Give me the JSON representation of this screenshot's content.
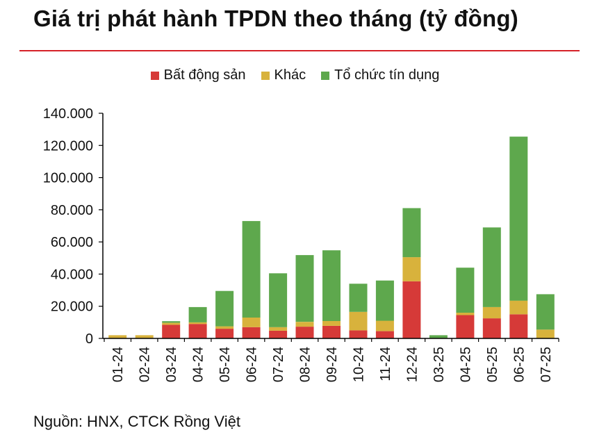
{
  "title": "Giá trị phát hành TPDN theo tháng (tỷ đồng)",
  "source": "Nguồn: HNX, CTCK Rồng Việt",
  "colors": {
    "rule": "#d62027",
    "grid_axis": "#000000"
  },
  "chart_data": {
    "type": "bar",
    "stacked": true,
    "categories": [
      "01-24",
      "02-24",
      "03-24",
      "04-24",
      "05-24",
      "06-24",
      "07-24",
      "08-24",
      "09-24",
      "10-24",
      "11-24",
      "12-24",
      "03-25",
      "04-25",
      "05-25",
      "06-25",
      "07-25"
    ],
    "series": [
      {
        "name": "Bất động sản",
        "color": "#d63a38",
        "values": [
          0,
          0,
          8500,
          9000,
          6000,
          7000,
          4800,
          7300,
          7800,
          5000,
          4500,
          35500,
          0,
          14500,
          12500,
          15000,
          0
        ]
      },
      {
        "name": "Khác",
        "color": "#d8b23c",
        "values": [
          2000,
          2000,
          1200,
          1000,
          1500,
          6000,
          2200,
          3000,
          3000,
          11500,
          6500,
          15000,
          0,
          1500,
          7000,
          8500,
          5500
        ]
      },
      {
        "name": "Tổ chức tín dụng",
        "color": "#5ea84d",
        "values": [
          0,
          0,
          1000,
          9500,
          22000,
          60000,
          33500,
          41500,
          44000,
          17500,
          25000,
          30500,
          2000,
          28000,
          49500,
          102000,
          22000
        ]
      }
    ],
    "ylim": [
      0,
      140000
    ],
    "yticks": [
      0,
      20000,
      40000,
      60000,
      80000,
      100000,
      120000,
      140000
    ],
    "ytick_labels": [
      "0",
      "20.000",
      "40.000",
      "60.000",
      "80.000",
      "100.000",
      "120.000",
      "140.000"
    ],
    "xlabel": "",
    "ylabel": "",
    "grid": false,
    "legend_position": "top"
  }
}
